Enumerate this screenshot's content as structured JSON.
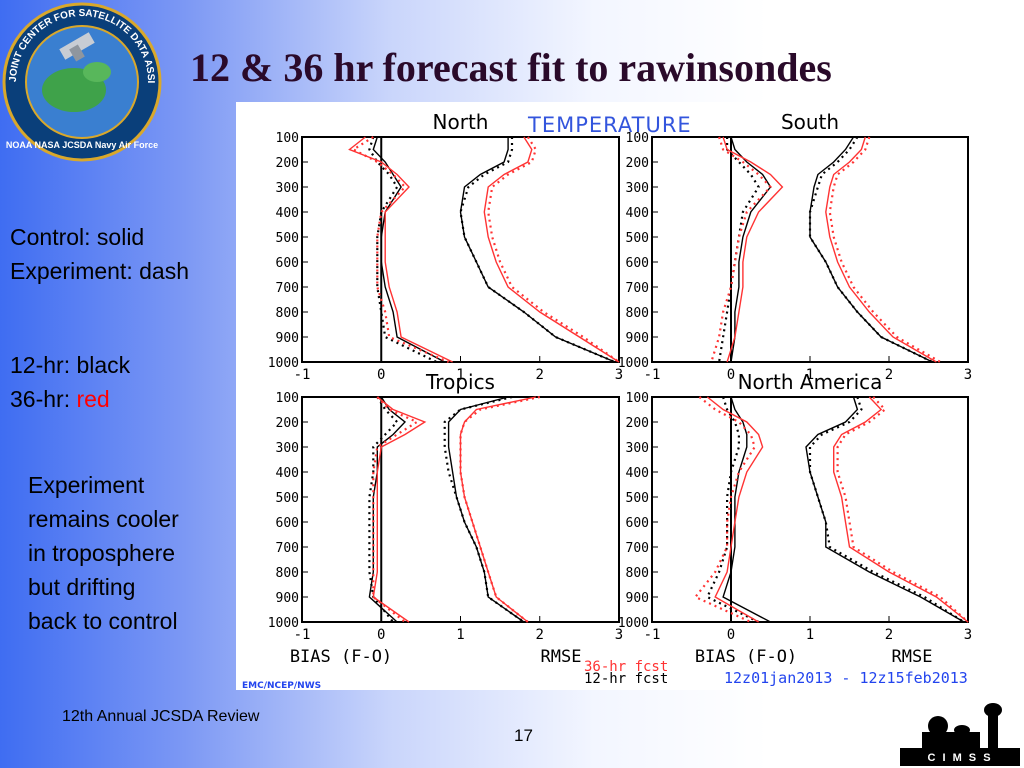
{
  "slide": {
    "title": "12 & 36 hr forecast fit to rawinsondes",
    "legend": {
      "control": "Control: solid",
      "experiment": "Experiment: dash",
      "hr12": "12-hr: black",
      "hr36_prefix": "36-hr: ",
      "hr36_word": "red"
    },
    "note": [
      "Experiment",
      "remains cooler",
      "in troposphere",
      "but drifting",
      "back to control"
    ],
    "footer": "12th Annual JCSDA Review",
    "page_number": "17"
  },
  "logos": {
    "jcsda": {
      "ring_text": "JOINT CENTER FOR SATELLITE DATA ASSIMILATION",
      "bottom_text": "NOAA NASA JCSDA Navy Air Force"
    },
    "cimss": {
      "text": "C I M S S"
    }
  },
  "colors": {
    "title": "#2a0a2a",
    "temperature_label": "#3355dd",
    "date_label": "#2244ee",
    "hr12": "#000000",
    "hr36": "#ff3333"
  },
  "figure": {
    "variable_label": "TEMPERATURE",
    "xlabel_bias": "BIAS (F-O)",
    "xlabel_rmse": "RMSE",
    "legend_36": "36-hr fcst",
    "legend_12": "12-hr fcst",
    "credit": "EMC/NCEP/NWS",
    "date_range": "12z01jan2013 - 12z15feb2013"
  },
  "chart_data": {
    "type": "line",
    "xlim": [
      -1,
      3
    ],
    "ylim": [
      1000,
      100
    ],
    "xticks": [
      "-1",
      "0",
      "1",
      "2",
      "3"
    ],
    "yticks": [
      "100",
      "200",
      "300",
      "400",
      "500",
      "600",
      "700",
      "800",
      "900",
      "1000"
    ],
    "levels": [
      100,
      150,
      200,
      250,
      300,
      400,
      500,
      600,
      700,
      800,
      900,
      1000
    ],
    "panels": [
      {
        "name": "North",
        "series": [
          {
            "stat": "bias",
            "hr": "12",
            "run": "control",
            "values": [
              -0.05,
              -0.1,
              0.05,
              0.15,
              0.25,
              0.05,
              0.0,
              0.0,
              0.05,
              0.15,
              0.2,
              0.8
            ]
          },
          {
            "stat": "bias",
            "hr": "12",
            "run": "experiment",
            "values": [
              -0.1,
              -0.15,
              -0.05,
              0.1,
              0.2,
              0.0,
              -0.05,
              -0.05,
              -0.05,
              0.0,
              0.05,
              0.7
            ]
          },
          {
            "stat": "bias",
            "hr": "36",
            "run": "control",
            "values": [
              -0.2,
              -0.4,
              0.0,
              0.2,
              0.35,
              0.05,
              0.05,
              0.05,
              0.1,
              0.2,
              0.25,
              0.9
            ]
          },
          {
            "stat": "bias",
            "hr": "36",
            "run": "experiment",
            "values": [
              -0.1,
              -0.35,
              -0.05,
              0.15,
              0.3,
              0.0,
              -0.05,
              -0.05,
              -0.05,
              0.05,
              0.1,
              0.85
            ]
          },
          {
            "stat": "rmse",
            "hr": "12",
            "run": "control",
            "values": [
              1.6,
              1.6,
              1.55,
              1.25,
              1.05,
              1.0,
              1.05,
              1.2,
              1.35,
              1.8,
              2.2,
              2.95
            ]
          },
          {
            "stat": "rmse",
            "hr": "12",
            "run": "experiment",
            "values": [
              1.65,
              1.65,
              1.6,
              1.3,
              1.1,
              1.0,
              1.05,
              1.2,
              1.35,
              1.8,
              2.2,
              2.95
            ]
          },
          {
            "stat": "rmse",
            "hr": "36",
            "run": "control",
            "values": [
              1.8,
              1.9,
              1.85,
              1.55,
              1.35,
              1.3,
              1.35,
              1.45,
              1.6,
              2.0,
              2.5,
              3.0
            ]
          },
          {
            "stat": "rmse",
            "hr": "36",
            "run": "experiment",
            "values": [
              1.85,
              1.95,
              1.9,
              1.6,
              1.4,
              1.35,
              1.4,
              1.5,
              1.65,
              2.05,
              2.55,
              3.0
            ]
          }
        ]
      },
      {
        "name": "South",
        "series": [
          {
            "stat": "bias",
            "hr": "12",
            "run": "control",
            "values": [
              0.0,
              0.05,
              0.2,
              0.4,
              0.5,
              0.25,
              0.15,
              0.1,
              0.1,
              0.05,
              0.05,
              0.0
            ]
          },
          {
            "stat": "bias",
            "hr": "12",
            "run": "experiment",
            "values": [
              -0.05,
              -0.05,
              0.1,
              0.25,
              0.35,
              0.15,
              0.1,
              0.05,
              0.0,
              -0.05,
              -0.1,
              -0.15
            ]
          },
          {
            "stat": "bias",
            "hr": "36",
            "run": "control",
            "values": [
              -0.1,
              -0.05,
              0.25,
              0.5,
              0.65,
              0.35,
              0.2,
              0.15,
              0.15,
              0.1,
              0.05,
              -0.05
            ]
          },
          {
            "stat": "bias",
            "hr": "36",
            "run": "experiment",
            "values": [
              -0.15,
              -0.1,
              0.15,
              0.35,
              0.5,
              0.2,
              0.1,
              0.05,
              0.0,
              -0.1,
              -0.15,
              -0.25
            ]
          },
          {
            "stat": "rmse",
            "hr": "12",
            "run": "control",
            "values": [
              1.55,
              1.45,
              1.3,
              1.1,
              1.05,
              1.0,
              1.0,
              1.2,
              1.35,
              1.6,
              1.9,
              2.55
            ]
          },
          {
            "stat": "rmse",
            "hr": "12",
            "run": "experiment",
            "values": [
              1.6,
              1.5,
              1.35,
              1.15,
              1.1,
              1.0,
              1.0,
              1.2,
              1.35,
              1.6,
              1.9,
              2.55
            ]
          },
          {
            "stat": "rmse",
            "hr": "36",
            "run": "control",
            "values": [
              1.7,
              1.65,
              1.5,
              1.3,
              1.25,
              1.2,
              1.25,
              1.35,
              1.5,
              1.75,
              2.05,
              2.6
            ]
          },
          {
            "stat": "rmse",
            "hr": "36",
            "run": "experiment",
            "values": [
              1.75,
              1.7,
              1.55,
              1.35,
              1.3,
              1.25,
              1.3,
              1.4,
              1.55,
              1.8,
              2.1,
              2.65
            ]
          }
        ]
      },
      {
        "name": "Tropics",
        "series": [
          {
            "stat": "bias",
            "hr": "12",
            "run": "control",
            "values": [
              0.0,
              0.1,
              0.3,
              0.15,
              -0.05,
              -0.05,
              -0.1,
              -0.1,
              -0.1,
              -0.1,
              -0.15,
              0.2
            ]
          },
          {
            "stat": "bias",
            "hr": "12",
            "run": "experiment",
            "values": [
              -0.05,
              0.05,
              0.2,
              0.05,
              -0.1,
              -0.1,
              -0.15,
              -0.15,
              -0.15,
              -0.15,
              -0.1,
              0.15
            ]
          },
          {
            "stat": "bias",
            "hr": "36",
            "run": "control",
            "values": [
              -0.05,
              0.15,
              0.55,
              0.3,
              0.0,
              -0.05,
              -0.05,
              -0.05,
              -0.05,
              -0.05,
              -0.1,
              0.35
            ]
          },
          {
            "stat": "bias",
            "hr": "36",
            "run": "experiment",
            "values": [
              -0.05,
              0.1,
              0.45,
              0.2,
              -0.05,
              -0.1,
              -0.1,
              -0.1,
              -0.1,
              -0.1,
              -0.1,
              0.3
            ]
          },
          {
            "stat": "rmse",
            "hr": "12",
            "run": "control",
            "values": [
              1.6,
              1.0,
              0.85,
              0.85,
              0.85,
              0.9,
              0.95,
              1.05,
              1.2,
              1.3,
              1.35,
              1.8
            ]
          },
          {
            "stat": "rmse",
            "hr": "12",
            "run": "experiment",
            "values": [
              1.65,
              1.0,
              0.8,
              0.8,
              0.8,
              0.85,
              0.95,
              1.05,
              1.2,
              1.3,
              1.35,
              1.8
            ]
          },
          {
            "stat": "rmse",
            "hr": "36",
            "run": "control",
            "values": [
              1.95,
              1.2,
              1.05,
              1.0,
              1.0,
              1.0,
              1.05,
              1.15,
              1.25,
              1.35,
              1.45,
              1.85
            ]
          },
          {
            "stat": "rmse",
            "hr": "36",
            "run": "experiment",
            "values": [
              2.0,
              1.25,
              1.05,
              1.0,
              1.0,
              1.0,
              1.05,
              1.15,
              1.25,
              1.35,
              1.45,
              1.85
            ]
          }
        ]
      },
      {
        "name": "North America",
        "series": [
          {
            "stat": "bias",
            "hr": "12",
            "run": "control",
            "values": [
              0.0,
              0.05,
              0.15,
              0.2,
              0.2,
              0.1,
              0.05,
              0.05,
              0.05,
              0.0,
              -0.1,
              0.5
            ]
          },
          {
            "stat": "bias",
            "hr": "12",
            "run": "experiment",
            "values": [
              -0.1,
              -0.05,
              0.05,
              0.1,
              0.1,
              0.0,
              -0.05,
              -0.05,
              -0.05,
              -0.15,
              -0.3,
              0.35
            ]
          },
          {
            "stat": "bias",
            "hr": "36",
            "run": "control",
            "values": [
              -0.3,
              -0.1,
              0.2,
              0.35,
              0.4,
              0.2,
              0.1,
              0.05,
              0.0,
              -0.05,
              -0.2,
              0.35
            ]
          },
          {
            "stat": "bias",
            "hr": "36",
            "run": "experiment",
            "values": [
              -0.4,
              -0.2,
              0.1,
              0.25,
              0.3,
              0.1,
              0.0,
              -0.05,
              -0.05,
              -0.2,
              -0.45,
              0.25
            ]
          },
          {
            "stat": "rmse",
            "hr": "12",
            "run": "control",
            "values": [
              1.55,
              1.6,
              1.45,
              1.1,
              0.95,
              1.0,
              1.1,
              1.2,
              1.2,
              1.75,
              2.4,
              2.95
            ]
          },
          {
            "stat": "rmse",
            "hr": "12",
            "run": "experiment",
            "values": [
              1.6,
              1.65,
              1.5,
              1.15,
              1.0,
              1.0,
              1.1,
              1.2,
              1.25,
              1.8,
              2.45,
              2.95
            ]
          },
          {
            "stat": "rmse",
            "hr": "36",
            "run": "control",
            "values": [
              1.75,
              1.9,
              1.7,
              1.4,
              1.3,
              1.3,
              1.4,
              1.45,
              1.5,
              2.0,
              2.6,
              3.0
            ]
          },
          {
            "stat": "rmse",
            "hr": "36",
            "run": "experiment",
            "values": [
              1.8,
              1.95,
              1.75,
              1.45,
              1.35,
              1.35,
              1.45,
              1.5,
              1.55,
              2.05,
              2.65,
              3.0
            ]
          }
        ]
      }
    ]
  }
}
